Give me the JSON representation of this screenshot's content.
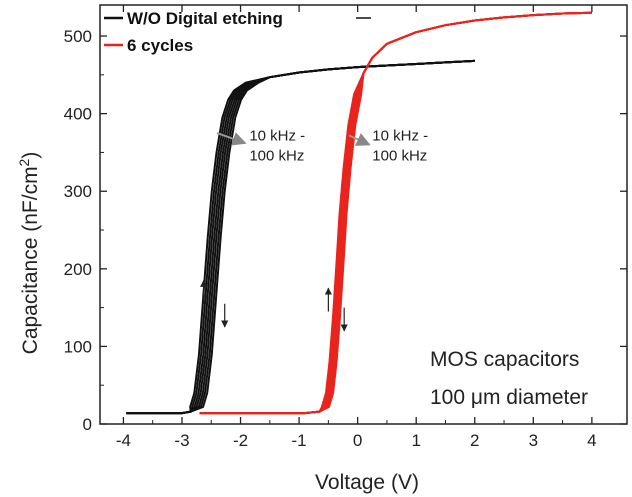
{
  "chart_data": {
    "type": "line",
    "title": "",
    "xlabel": "Voltage (V)",
    "ylabel": "Capacitance (nF/cm",
    "ylabel_sup": "2",
    "ylabel_close": ")",
    "xlim": [
      -4.4,
      4.6
    ],
    "ylim": [
      0,
      540
    ],
    "xticks": [
      -4,
      -3,
      -2,
      -1,
      0,
      1,
      2,
      3,
      4
    ],
    "yticks": [
      0,
      100,
      200,
      300,
      400,
      500
    ],
    "x_tick_labels": [
      "-4",
      "-3",
      "-2",
      "-1",
      "0",
      "1",
      "2",
      "3",
      "4"
    ],
    "y_tick_labels": [
      "0",
      "100",
      "200",
      "300",
      "400",
      "500"
    ],
    "legend_placement": "top-left",
    "series": [
      {
        "name": "W/O Digital etching",
        "color": "#111111",
        "band_width_v": 0.22,
        "points": [
          [
            -3.95,
            14
          ],
          [
            -3.4,
            14
          ],
          [
            -3.0,
            14
          ],
          [
            -2.85,
            16
          ],
          [
            -2.75,
            22
          ],
          [
            -2.68,
            40
          ],
          [
            -2.6,
            90
          ],
          [
            -2.52,
            170
          ],
          [
            -2.45,
            240
          ],
          [
            -2.38,
            300
          ],
          [
            -2.3,
            350
          ],
          [
            -2.2,
            395
          ],
          [
            -2.1,
            418
          ],
          [
            -2.0,
            430
          ],
          [
            -1.8,
            440
          ],
          [
            -1.5,
            447
          ],
          [
            -1.0,
            453
          ],
          [
            -0.5,
            457
          ],
          [
            0.0,
            460
          ],
          [
            0.5,
            462
          ],
          [
            1.0,
            464
          ],
          [
            1.5,
            466
          ],
          [
            2.0,
            468
          ]
        ]
      },
      {
        "name": "6 cycles",
        "color": "#e8241c",
        "band_width_v": 0.12,
        "points": [
          [
            -2.7,
            14
          ],
          [
            -1.5,
            14
          ],
          [
            -0.9,
            14
          ],
          [
            -0.65,
            16
          ],
          [
            -0.55,
            22
          ],
          [
            -0.48,
            40
          ],
          [
            -0.42,
            80
          ],
          [
            -0.36,
            140
          ],
          [
            -0.3,
            210
          ],
          [
            -0.25,
            270
          ],
          [
            -0.18,
            330
          ],
          [
            -0.1,
            385
          ],
          [
            0.0,
            425
          ],
          [
            0.1,
            452
          ],
          [
            0.25,
            472
          ],
          [
            0.5,
            490
          ],
          [
            1.0,
            505
          ],
          [
            1.5,
            514
          ],
          [
            2.0,
            520
          ],
          [
            2.5,
            524
          ],
          [
            3.0,
            527
          ],
          [
            3.5,
            529
          ],
          [
            4.0,
            530
          ]
        ]
      }
    ],
    "annotations": [
      {
        "line1": "10 kHz -",
        "line2": "100 kHz",
        "x": -1.85,
        "y": 360,
        "arrow_from": [
          -2.4,
          375
        ],
        "arrow_to": [
          -1.92,
          362
        ]
      },
      {
        "line1": "10 kHz -",
        "line2": "100 kHz",
        "x": 0.25,
        "y": 360,
        "arrow_from": [
          -0.15,
          372
        ],
        "arrow_to": [
          0.2,
          360
        ]
      }
    ],
    "sweep_arrows": [
      {
        "x": -2.63,
        "y1": 155,
        "y2": 185,
        "dir": "up"
      },
      {
        "x": -2.27,
        "y1": 155,
        "y2": 125,
        "dir": "down"
      },
      {
        "x": -0.5,
        "y1": 145,
        "y2": 175,
        "dir": "up"
      },
      {
        "x": -0.23,
        "y1": 150,
        "y2": 120,
        "dir": "down"
      }
    ],
    "note": {
      "line1": "MOS capacitors",
      "line2_prefix": "100 ",
      "line2_unit": "μm diameter"
    }
  }
}
